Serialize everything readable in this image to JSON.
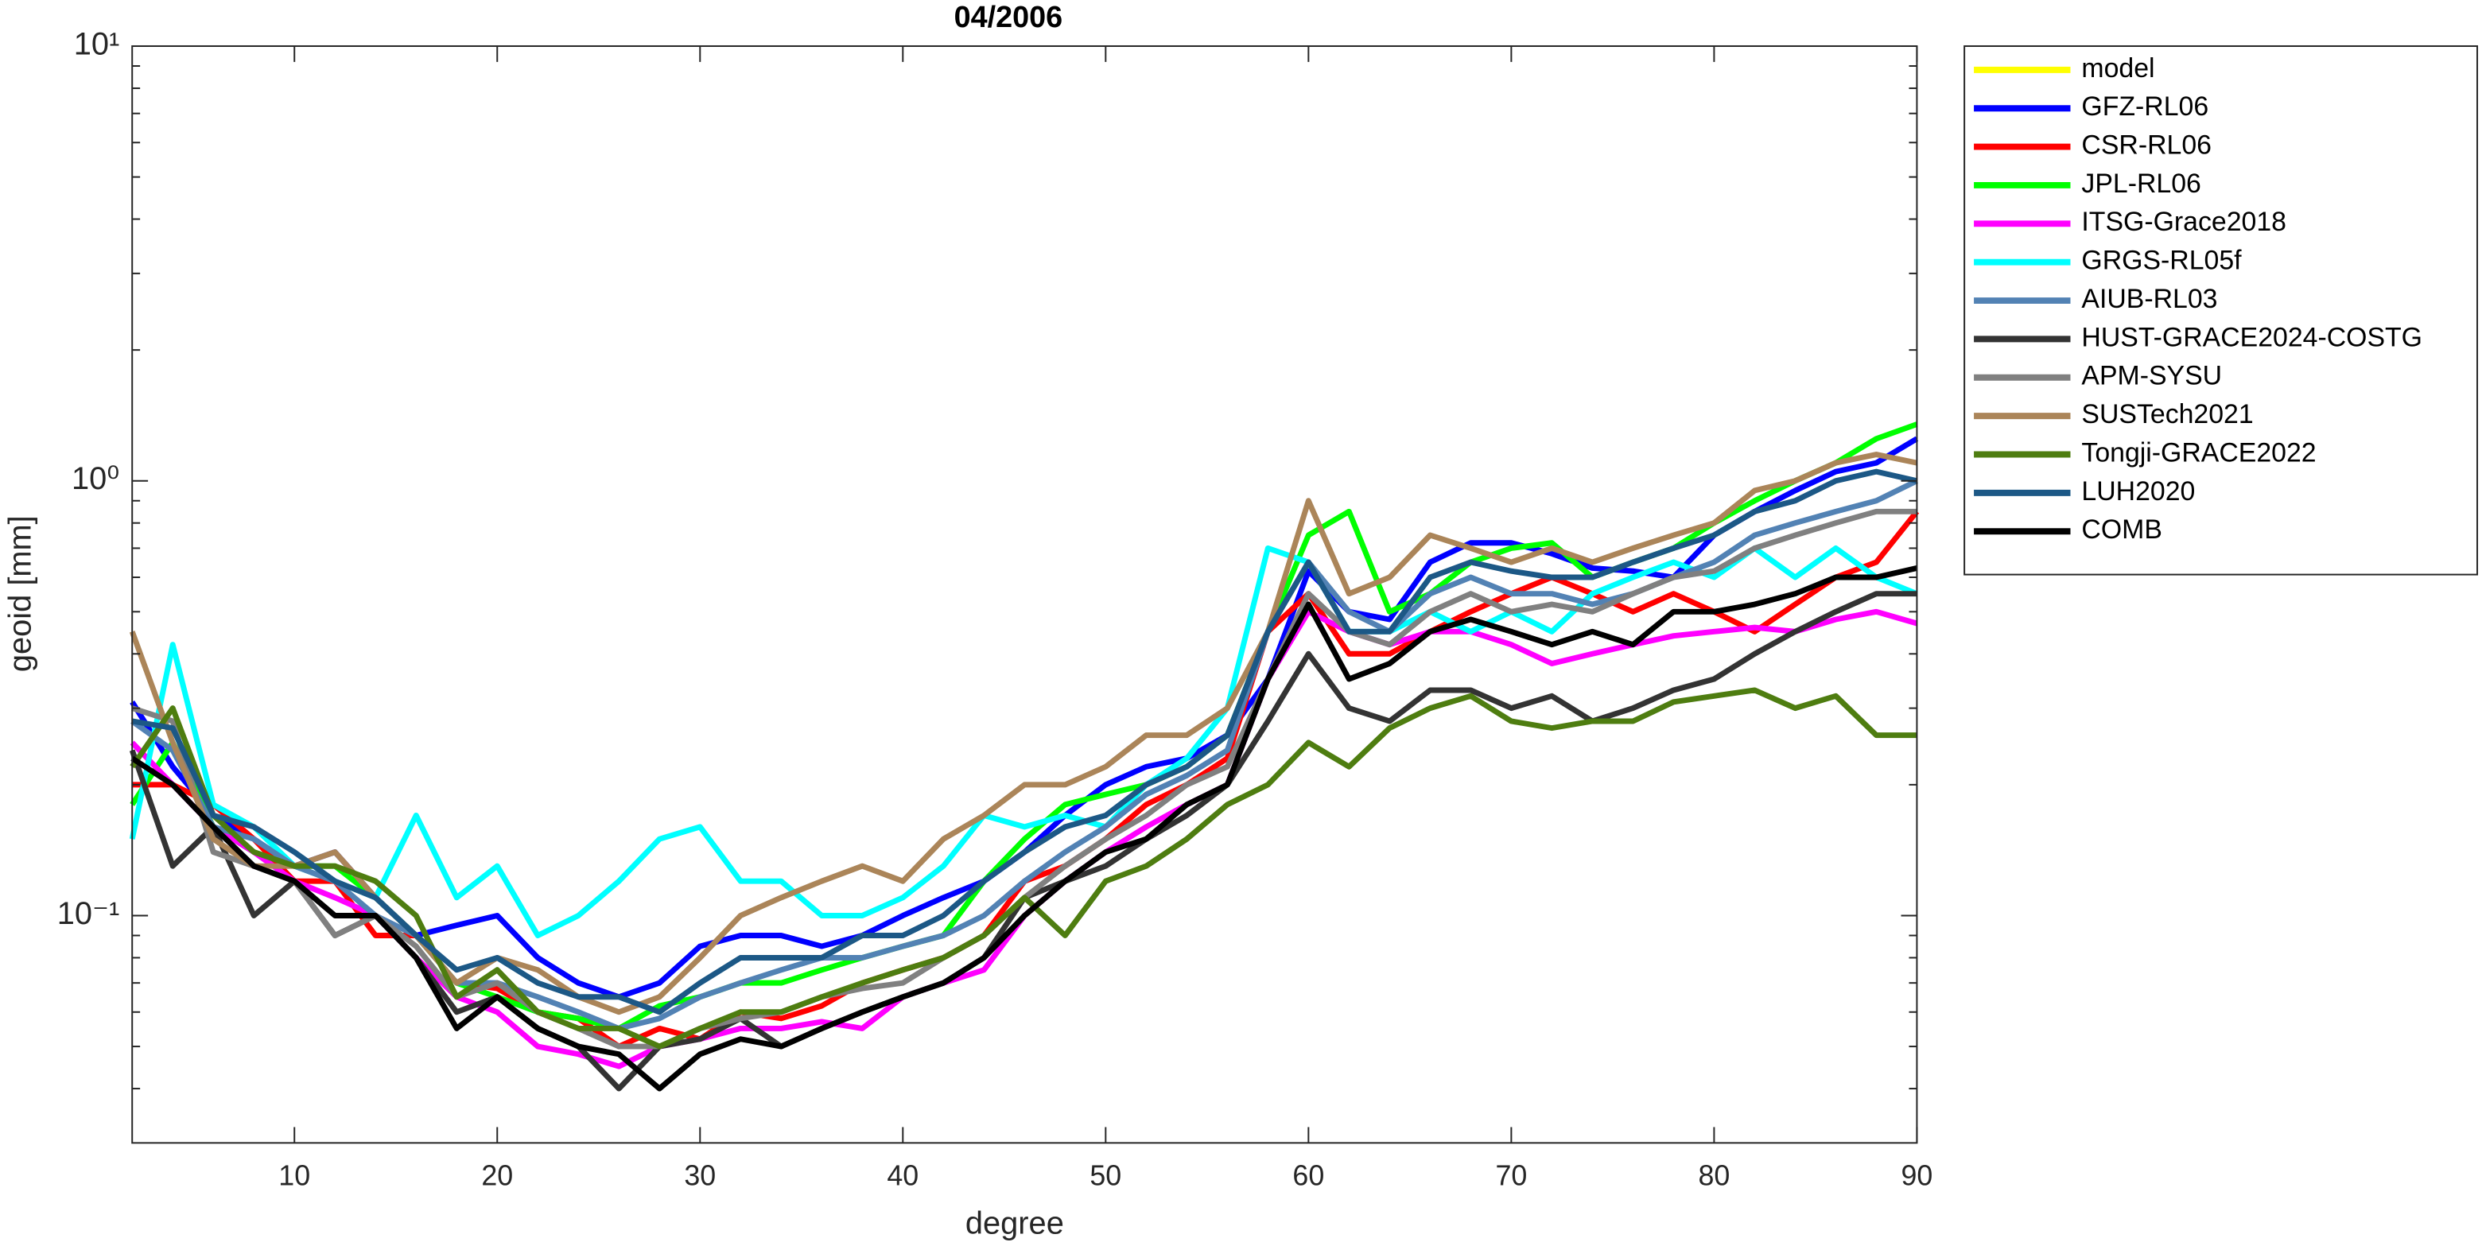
{
  "chart_data": {
    "type": "line",
    "title": "04/2006",
    "xlabel": "degree",
    "ylabel": "geoid [mm]",
    "x": [
      2,
      4,
      6,
      8,
      10,
      12,
      14,
      16,
      18,
      20,
      22,
      24,
      26,
      28,
      30,
      32,
      34,
      36,
      38,
      40,
      42,
      44,
      46,
      48,
      50,
      52,
      54,
      56,
      58,
      60,
      62,
      64,
      66,
      68,
      70,
      72,
      74,
      76,
      78,
      80,
      82,
      84,
      86,
      88,
      90
    ],
    "xlim": [
      2,
      90
    ],
    "xticks": [
      10,
      20,
      30,
      40,
      50,
      60,
      70,
      80,
      90
    ],
    "ylim": [
      0.03,
      10
    ],
    "ylog": true,
    "yticks": [
      {
        "value": 0.1,
        "label": "10⁻¹"
      },
      {
        "value": 1,
        "label": "10⁰"
      },
      {
        "value": 10,
        "label": "10¹"
      }
    ],
    "yminorticks": [
      0.04,
      0.05,
      0.06,
      0.07,
      0.08,
      0.09,
      0.2,
      0.3,
      0.4,
      0.5,
      0.6,
      0.7,
      0.8,
      0.9,
      2,
      3,
      4,
      5,
      6,
      7,
      8,
      9
    ],
    "legend": "outside right",
    "series": [
      {
        "name": "model",
        "color": "#ffff00",
        "values": [
          null,
          null,
          null,
          null,
          null,
          null,
          null,
          null,
          null,
          null,
          null,
          null,
          null,
          null,
          null,
          null,
          null,
          null,
          null,
          null,
          null,
          null,
          null,
          null,
          null,
          null,
          null,
          null,
          null,
          null,
          null,
          null,
          null,
          null,
          null,
          null,
          null,
          null,
          null,
          null,
          null,
          null,
          null,
          null,
          null
        ]
      },
      {
        "name": "GFZ-RL06",
        "color": "#0000ff",
        "values": [
          0.31,
          0.22,
          0.17,
          0.15,
          0.13,
          0.14,
          0.11,
          0.09,
          0.095,
          0.1,
          0.08,
          0.07,
          0.065,
          0.07,
          0.085,
          0.09,
          0.09,
          0.085,
          0.09,
          0.1,
          0.11,
          0.12,
          0.14,
          0.17,
          0.2,
          0.22,
          0.23,
          0.26,
          0.35,
          0.62,
          0.5,
          0.48,
          0.65,
          0.72,
          0.72,
          0.68,
          0.63,
          0.62,
          0.6,
          0.75,
          0.85,
          0.95,
          1.05,
          1.1,
          1.25
        ]
      },
      {
        "name": "CSR-RL06",
        "color": "#ff0000",
        "values": [
          0.2,
          0.2,
          0.18,
          0.15,
          0.12,
          0.12,
          0.09,
          0.09,
          0.07,
          0.068,
          0.06,
          0.058,
          0.05,
          0.055,
          0.052,
          0.06,
          0.058,
          0.062,
          0.07,
          0.075,
          0.08,
          0.09,
          0.12,
          0.13,
          0.15,
          0.18,
          0.2,
          0.23,
          0.45,
          0.55,
          0.4,
          0.4,
          0.45,
          0.5,
          0.55,
          0.6,
          0.55,
          0.5,
          0.55,
          0.5,
          0.45,
          0.52,
          0.6,
          0.65,
          0.85
        ]
      },
      {
        "name": "JPL-RL06",
        "color": "#00ff00",
        "values": [
          0.18,
          0.25,
          0.16,
          0.14,
          0.13,
          0.13,
          0.11,
          0.09,
          0.07,
          0.065,
          0.06,
          0.058,
          0.055,
          0.062,
          0.065,
          0.07,
          0.07,
          0.075,
          0.08,
          0.085,
          0.09,
          0.12,
          0.15,
          0.18,
          0.19,
          0.2,
          0.22,
          0.26,
          0.45,
          0.75,
          0.85,
          0.5,
          0.55,
          0.65,
          0.7,
          0.72,
          0.6,
          0.65,
          0.7,
          0.8,
          0.9,
          1.0,
          1.1,
          1.25,
          1.35
        ]
      },
      {
        "name": "ITSG-Grace2018",
        "color": "#ff00ff",
        "values": [
          0.25,
          0.2,
          0.16,
          0.14,
          0.12,
          0.11,
          0.1,
          0.08,
          0.065,
          0.06,
          0.05,
          0.048,
          0.045,
          0.05,
          0.052,
          0.055,
          0.055,
          0.057,
          0.055,
          0.065,
          0.07,
          0.075,
          0.1,
          0.12,
          0.14,
          0.16,
          0.18,
          0.2,
          0.35,
          0.5,
          0.45,
          0.42,
          0.45,
          0.45,
          0.42,
          0.38,
          0.4,
          0.42,
          0.44,
          0.45,
          0.46,
          0.45,
          0.48,
          0.5,
          0.47
        ]
      },
      {
        "name": "GRGS-RL05f",
        "color": "#00ffff",
        "values": [
          0.15,
          0.42,
          0.18,
          0.16,
          0.13,
          0.12,
          0.11,
          0.17,
          0.11,
          0.13,
          0.09,
          0.1,
          0.12,
          0.15,
          0.16,
          0.12,
          0.12,
          0.1,
          0.1,
          0.11,
          0.13,
          0.17,
          0.16,
          0.17,
          0.16,
          0.2,
          0.23,
          0.3,
          0.7,
          0.65,
          0.45,
          0.45,
          0.5,
          0.45,
          0.5,
          0.45,
          0.55,
          0.6,
          0.65,
          0.6,
          0.7,
          0.6,
          0.7,
          0.6,
          0.55
        ]
      },
      {
        "name": "AIUB-RL03",
        "color": "#5282b4",
        "values": [
          0.28,
          0.24,
          0.16,
          0.15,
          0.13,
          0.12,
          0.1,
          0.09,
          0.07,
          0.07,
          0.065,
          0.06,
          0.055,
          0.058,
          0.065,
          0.07,
          0.075,
          0.08,
          0.08,
          0.085,
          0.09,
          0.1,
          0.12,
          0.14,
          0.16,
          0.19,
          0.21,
          0.24,
          0.45,
          0.65,
          0.5,
          0.45,
          0.55,
          0.6,
          0.55,
          0.55,
          0.52,
          0.55,
          0.6,
          0.65,
          0.75,
          0.8,
          0.85,
          0.9,
          1.0
        ]
      },
      {
        "name": "HUST-GRACE2024-COSTG",
        "color": "#333333",
        "values": [
          0.24,
          0.13,
          0.16,
          0.1,
          0.12,
          0.09,
          0.1,
          0.08,
          0.06,
          0.065,
          0.055,
          0.05,
          0.04,
          0.05,
          0.052,
          0.058,
          0.05,
          0.055,
          0.06,
          0.065,
          0.07,
          0.08,
          0.11,
          0.12,
          0.13,
          0.15,
          0.17,
          0.2,
          0.28,
          0.4,
          0.3,
          0.28,
          0.33,
          0.33,
          0.3,
          0.32,
          0.28,
          0.3,
          0.33,
          0.35,
          0.4,
          0.45,
          0.5,
          0.55,
          0.55
        ]
      },
      {
        "name": "APM-SYSU",
        "color": "#808080",
        "values": [
          0.3,
          0.28,
          0.14,
          0.13,
          0.12,
          0.09,
          0.1,
          0.085,
          0.065,
          0.07,
          0.06,
          0.055,
          0.05,
          0.05,
          0.055,
          0.058,
          0.06,
          0.065,
          0.068,
          0.07,
          0.08,
          0.09,
          0.11,
          0.13,
          0.15,
          0.17,
          0.2,
          0.22,
          0.35,
          0.55,
          0.45,
          0.42,
          0.5,
          0.55,
          0.5,
          0.52,
          0.5,
          0.55,
          0.6,
          0.62,
          0.7,
          0.75,
          0.8,
          0.85,
          0.85
        ]
      },
      {
        "name": "SUSTech2021",
        "color": "#ab8559",
        "values": [
          0.45,
          0.25,
          0.15,
          0.13,
          0.13,
          0.14,
          0.11,
          0.09,
          0.07,
          0.08,
          0.075,
          0.065,
          0.06,
          0.065,
          0.08,
          0.1,
          0.11,
          0.12,
          0.13,
          0.12,
          0.15,
          0.17,
          0.2,
          0.2,
          0.22,
          0.26,
          0.26,
          0.3,
          0.45,
          0.9,
          0.55,
          0.6,
          0.75,
          0.7,
          0.65,
          0.7,
          0.65,
          0.7,
          0.75,
          0.8,
          0.95,
          1.0,
          1.1,
          1.15,
          1.1
        ]
      },
      {
        "name": "Tongji-GRACE2022",
        "color": "#4e7d10",
        "values": [
          0.22,
          0.3,
          0.17,
          0.14,
          0.13,
          0.13,
          0.12,
          0.1,
          0.065,
          0.075,
          0.06,
          0.055,
          0.055,
          0.05,
          0.055,
          0.06,
          0.06,
          0.065,
          0.07,
          0.075,
          0.08,
          0.09,
          0.11,
          0.09,
          0.12,
          0.13,
          0.15,
          0.18,
          0.2,
          0.25,
          0.22,
          0.27,
          0.3,
          0.32,
          0.28,
          0.27,
          0.28,
          0.28,
          0.31,
          0.32,
          0.33,
          0.3,
          0.32,
          0.26,
          0.26
        ]
      },
      {
        "name": "LUH2020",
        "color": "#1c5886",
        "values": [
          0.28,
          0.27,
          0.17,
          0.16,
          0.14,
          0.12,
          0.11,
          0.09,
          0.075,
          0.08,
          0.07,
          0.065,
          0.065,
          0.06,
          0.07,
          0.08,
          0.08,
          0.08,
          0.09,
          0.09,
          0.1,
          0.12,
          0.14,
          0.16,
          0.17,
          0.2,
          0.22,
          0.26,
          0.45,
          0.65,
          0.45,
          0.45,
          0.6,
          0.65,
          0.62,
          0.6,
          0.6,
          0.65,
          0.7,
          0.75,
          0.85,
          0.9,
          1.0,
          1.05,
          1.0
        ]
      },
      {
        "name": "COMB",
        "color": "#000000",
        "values": [
          0.23,
          0.2,
          0.16,
          0.13,
          0.12,
          0.1,
          0.1,
          0.08,
          0.055,
          0.065,
          0.055,
          0.05,
          0.048,
          0.04,
          0.048,
          0.052,
          0.05,
          0.055,
          0.06,
          0.065,
          0.07,
          0.08,
          0.1,
          0.12,
          0.14,
          0.15,
          0.18,
          0.2,
          0.35,
          0.52,
          0.35,
          0.38,
          0.45,
          0.48,
          0.45,
          0.42,
          0.45,
          0.42,
          0.5,
          0.5,
          0.52,
          0.55,
          0.6,
          0.6,
          0.63
        ]
      }
    ]
  }
}
